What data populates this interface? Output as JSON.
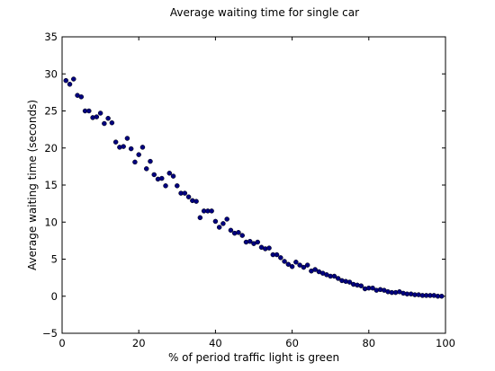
{
  "chart_data": {
    "type": "scatter",
    "title": "Average waiting time for single car",
    "xlabel": "% of period traffic light is green",
    "ylabel": "Average waiting time (seconds)",
    "xlim": [
      0,
      100
    ],
    "ylim": [
      -5,
      35
    ],
    "xticks": [
      "0",
      "20",
      "40",
      "60",
      "80",
      "100"
    ],
    "yticks": [
      "−5",
      "0",
      "5",
      "10",
      "15",
      "20",
      "25",
      "30",
      "35"
    ],
    "grid": false,
    "legend": "none",
    "marker_color": "#00007f",
    "marker_edge_color": "#000000",
    "series": [
      {
        "x": [
          1,
          2,
          3,
          4,
          5,
          6,
          7,
          8,
          9,
          10,
          11,
          12,
          13,
          14,
          15,
          16,
          17,
          18,
          19,
          20,
          21,
          22,
          23,
          24,
          25,
          26,
          27,
          28,
          29,
          30,
          31,
          32,
          33,
          34,
          35,
          36,
          37,
          38,
          39,
          40,
          41,
          42,
          43,
          44,
          45,
          46,
          47,
          48,
          49,
          50,
          51,
          52,
          53,
          54,
          55,
          56,
          57,
          58,
          59,
          60,
          61,
          62,
          63,
          64,
          65,
          66,
          67,
          68,
          69,
          70,
          71,
          72,
          73,
          74,
          75,
          76,
          77,
          78,
          79,
          80,
          81,
          82,
          83,
          84,
          85,
          86,
          87,
          88,
          89,
          90,
          91,
          92,
          93,
          94,
          95,
          96,
          97,
          98,
          99
        ],
        "y": [
          29.1,
          28.6,
          29.3,
          27.1,
          26.9,
          25.0,
          25.0,
          24.1,
          24.2,
          24.7,
          23.3,
          24.0,
          23.4,
          20.8,
          20.1,
          20.2,
          21.3,
          19.9,
          18.1,
          19.1,
          20.1,
          17.2,
          18.2,
          16.4,
          15.8,
          15.9,
          14.9,
          16.6,
          16.2,
          14.9,
          13.9,
          13.9,
          13.4,
          12.9,
          12.8,
          10.6,
          11.5,
          11.5,
          11.5,
          10.1,
          9.3,
          9.8,
          10.4,
          8.9,
          8.5,
          8.6,
          8.2,
          7.3,
          7.4,
          7.1,
          7.3,
          6.6,
          6.4,
          6.5,
          5.6,
          5.6,
          5.2,
          4.7,
          4.3,
          4.0,
          4.6,
          4.2,
          3.9,
          4.2,
          3.4,
          3.6,
          3.3,
          3.1,
          2.9,
          2.7,
          2.7,
          2.4,
          2.1,
          2.0,
          1.9,
          1.6,
          1.5,
          1.4,
          1.0,
          1.1,
          1.1,
          0.8,
          0.9,
          0.8,
          0.6,
          0.5,
          0.5,
          0.6,
          0.4,
          0.3,
          0.3,
          0.2,
          0.2,
          0.1,
          0.1,
          0.1,
          0.1,
          0.0,
          0.0
        ]
      }
    ]
  }
}
